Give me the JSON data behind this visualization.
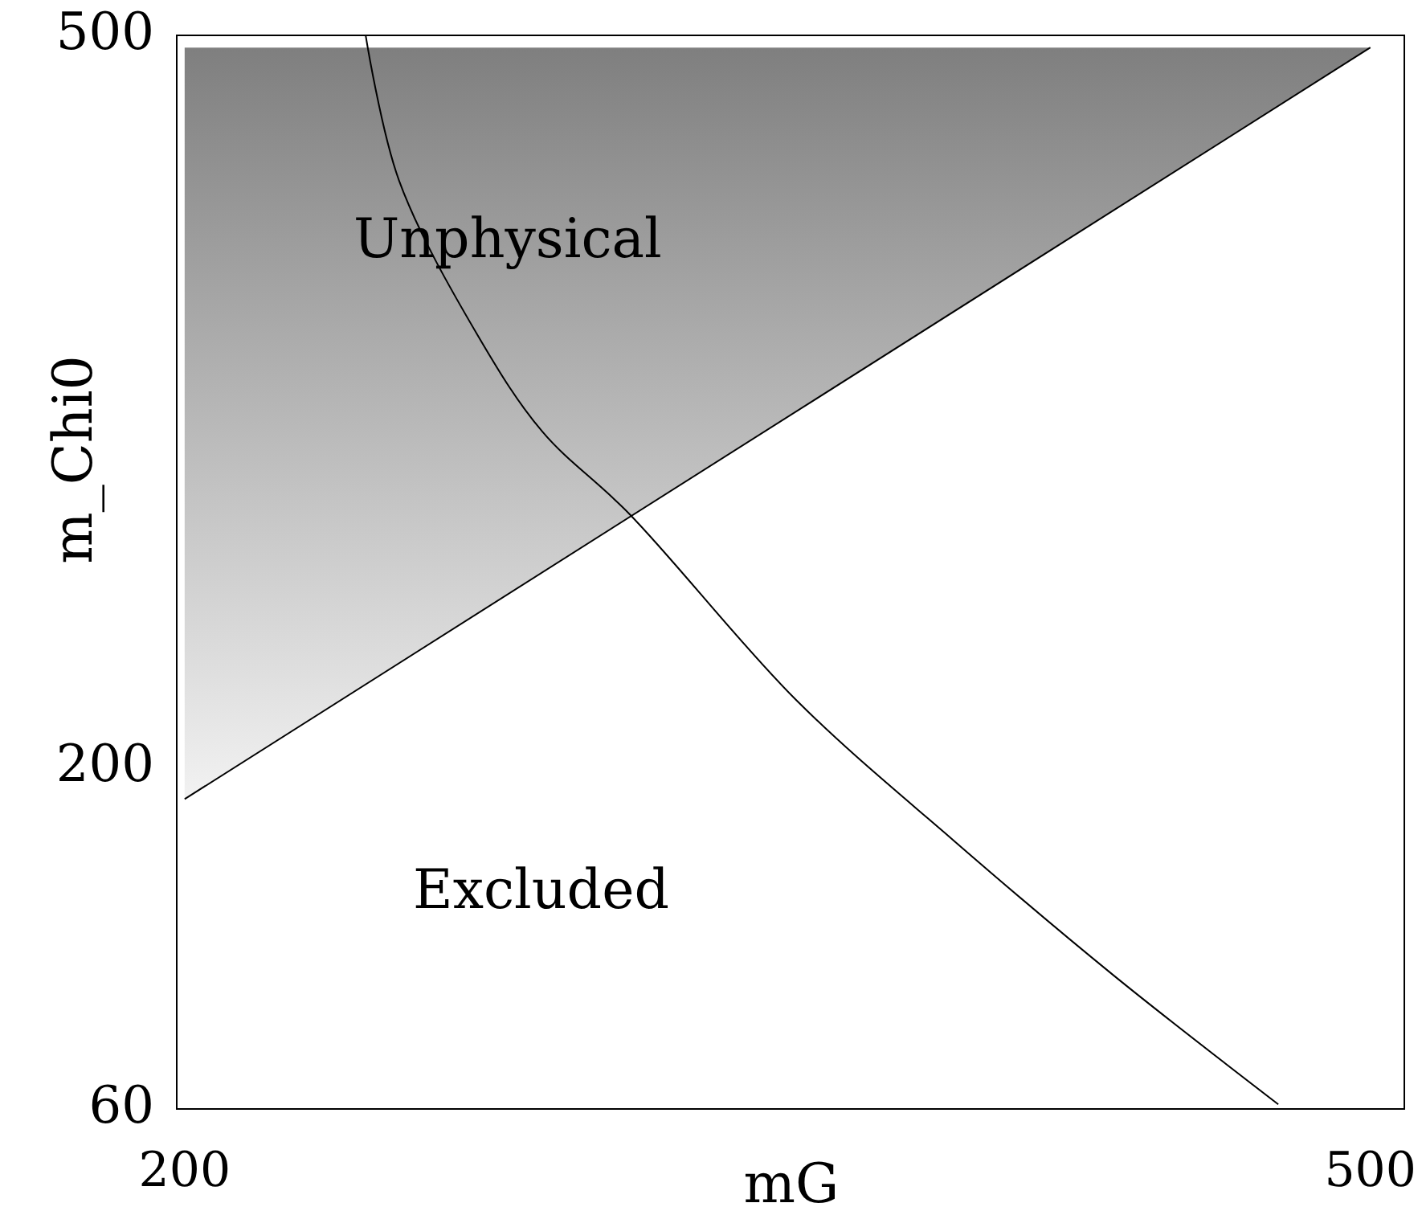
{
  "chart_data": {
    "type": "line",
    "xlabel": "mG",
    "ylabel": "m_Chi0",
    "xlim": [
      198,
      509
    ],
    "ylim": [
      60,
      500
    ],
    "xticks": [
      200,
      500
    ],
    "yticks": [
      60,
      200,
      500
    ],
    "grid": false,
    "series": [
      {
        "type": "line",
        "color": "#000000",
        "x": [
          200,
          500
        ],
        "values": [
          187,
          495
        ],
        "lower": [
          187,
          495
        ],
        "upper": [
          495,
          495
        ]
      },
      {
        "color": "#000000",
        "x": [
          245.8,
          254.2,
          274.5,
          290.6,
          312.5,
          354.6,
          394.8,
          435,
          476.7
        ],
        "values": [
          500,
          440.7,
          376.1,
          337.4,
          303.9,
          227.8,
          169.7,
          114.8,
          61.9
        ]
      }
    ],
    "annotations": [
      "Unphysical",
      "Excluded"
    ]
  }
}
